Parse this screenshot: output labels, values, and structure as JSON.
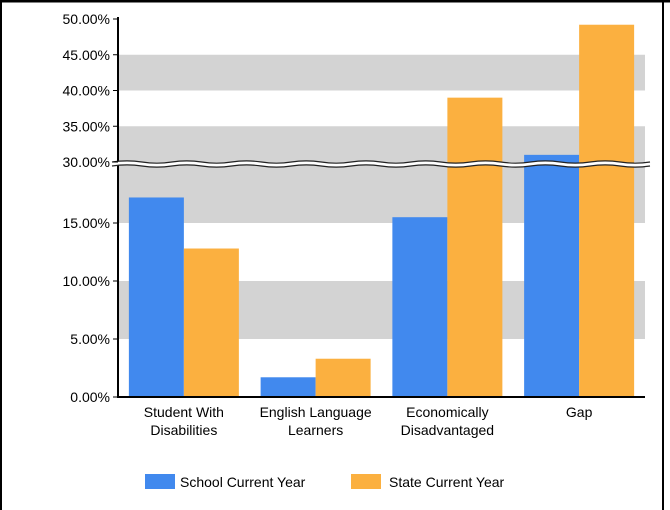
{
  "chart_data": {
    "type": "bar",
    "axis_break": {
      "below": 20,
      "above": 30,
      "scale": "broken"
    },
    "y_ticks": [
      {
        "value": 0,
        "label": "0.00%"
      },
      {
        "value": 5,
        "label": "5.00%"
      },
      {
        "value": 10,
        "label": "10.00%"
      },
      {
        "value": 15,
        "label": "15.00%"
      },
      {
        "value": 30,
        "label": "30.00%"
      },
      {
        "value": 35,
        "label": "35.00%"
      },
      {
        "value": 40,
        "label": "40.00%"
      },
      {
        "value": 45,
        "label": "45.00%"
      },
      {
        "value": 50,
        "label": "50.00%"
      }
    ],
    "ylim": [
      0,
      50
    ],
    "categories": [
      [
        "Student With",
        "Disabilities"
      ],
      [
        "English Language",
        "Learners"
      ],
      [
        "Economically",
        "Disadvantaged"
      ],
      [
        "Gap"
      ]
    ],
    "series": [
      {
        "name": "School Current Year",
        "color": "#4189EE",
        "values": [
          17.2,
          1.7,
          15.5,
          31.0
        ]
      },
      {
        "name": "State Current Year",
        "color": "#FBB040",
        "values": [
          12.8,
          3.3,
          39.0,
          49.2
        ]
      }
    ],
    "grid": "alternating bands",
    "band_color": "#D3D3D3",
    "legend": "bottom"
  }
}
